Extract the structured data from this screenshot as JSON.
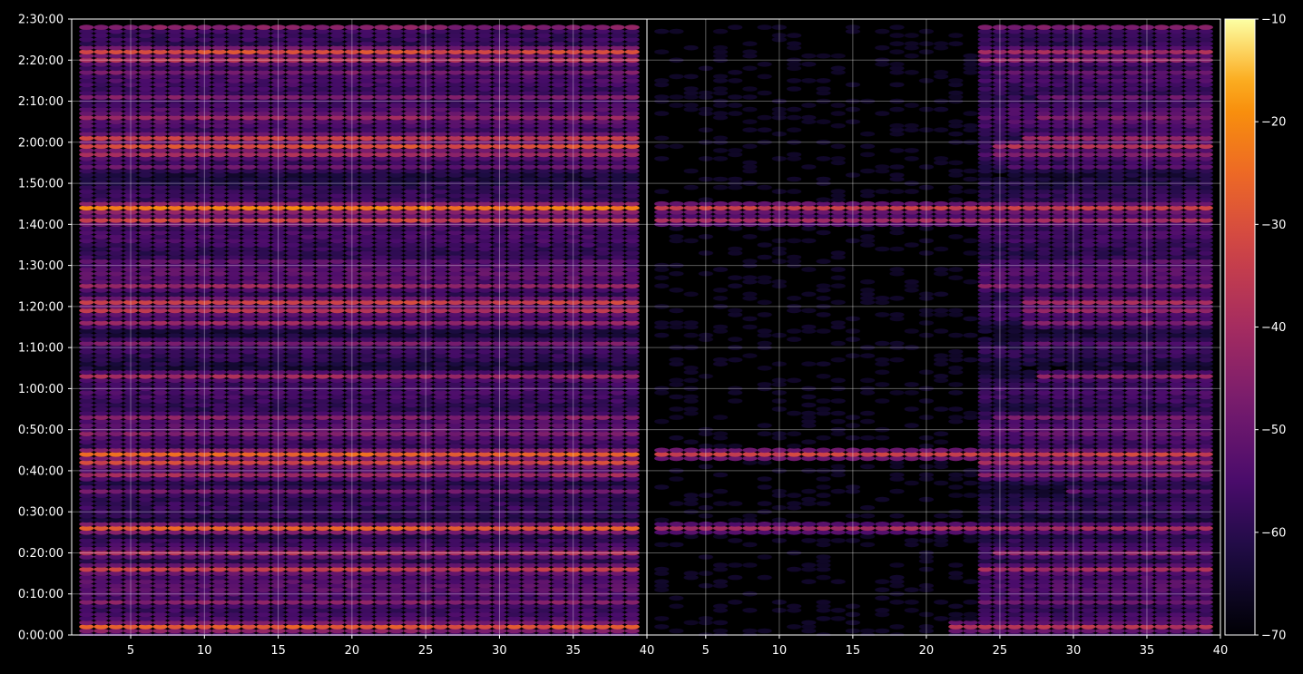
{
  "chart_data": {
    "type": "heatmap",
    "title": "",
    "xlabel": "",
    "ylabel": "",
    "background": "#000000",
    "colormap": "inferno",
    "colorbar": {
      "vmin": -70,
      "vmax": -10,
      "ticks": [
        -10,
        -20,
        -30,
        -40,
        -50,
        -60,
        -70
      ],
      "labels": [
        "−10",
        "−20",
        "−30",
        "−40",
        "−50",
        "−60",
        "−70"
      ]
    },
    "grid": true,
    "y_axis": {
      "unit": "time",
      "range_seconds": [
        0,
        9000
      ],
      "ticks": [
        0,
        600,
        1200,
        1800,
        2400,
        3000,
        3600,
        4200,
        4800,
        5400,
        6000,
        6600,
        7200,
        7800,
        8400,
        9000
      ],
      "tick_labels": [
        "0:00:00",
        "0:10:00",
        "0:20:00",
        "0:30:00",
        "0:40:00",
        "0:50:00",
        "1:00:00",
        "1:10:00",
        "1:20:00",
        "1:30:00",
        "1:40:00",
        "1:50:00",
        "2:00:00",
        "2:10:00",
        "2:20:00",
        "2:30:00"
      ]
    },
    "panels": [
      {
        "name": "left",
        "xlim": [
          1,
          40
        ],
        "xticks": [
          5,
          10,
          15,
          20,
          25,
          30,
          35,
          40
        ],
        "xtick_labels": [
          "5",
          "10",
          "15",
          "20",
          "25",
          "30",
          "35",
          "40"
        ]
      },
      {
        "name": "right",
        "xlim": [
          1,
          40
        ],
        "xticks": [
          5,
          10,
          15,
          20,
          25,
          30,
          35,
          40
        ],
        "xtick_labels": [
          "5",
          "10",
          "15",
          "20",
          "25",
          "30",
          "35",
          "40"
        ]
      }
    ],
    "channels_x": {
      "start": 2,
      "end": 39,
      "step": 1
    },
    "time_step_seconds": 60,
    "bands": [
      {
        "t": 8880,
        "left": -45,
        "right": -46,
        "right_from": 24
      },
      {
        "t": 8520,
        "left": -30,
        "right": -40,
        "right_from": 24
      },
      {
        "t": 8400,
        "left": -38,
        "right": -44,
        "right_from": 24
      },
      {
        "t": 8220,
        "left": -47,
        "right": -50,
        "right_from": 25
      },
      {
        "t": 7860,
        "left": -46,
        "right": -50,
        "right_from": 28
      },
      {
        "t": 7560,
        "left": -42,
        "right": -46,
        "right_from": 28
      },
      {
        "t": 7260,
        "left": -34,
        "right": -42,
        "right_from": 27
      },
      {
        "t": 7140,
        "left": -30,
        "right": -38,
        "right_from": 25
      },
      {
        "t": 7020,
        "left": -40,
        "right": -46,
        "right_from": 25
      },
      {
        "t": 6840,
        "left": -50,
        "right": -54,
        "right_from": 26
      },
      {
        "t": 6240,
        "left": -22,
        "right": -34,
        "right_from": 1,
        "right_fade": -55
      },
      {
        "t": 6060,
        "left": -33,
        "right": -40,
        "right_from": 1,
        "right_fade": -60
      },
      {
        "t": 5460,
        "left": -52,
        "right": -52,
        "right_from": 30
      },
      {
        "t": 5100,
        "left": -42,
        "right": -46,
        "right_from": 24
      },
      {
        "t": 4860,
        "left": -33,
        "right": -40,
        "right_from": 27
      },
      {
        "t": 4740,
        "left": -37,
        "right": -42,
        "right_from": 27
      },
      {
        "t": 4560,
        "left": -42,
        "right": -46,
        "right_from": 27
      },
      {
        "t": 4260,
        "left": -47,
        "right": -52,
        "right_from": 27
      },
      {
        "t": 3780,
        "left": -40,
        "right": -44,
        "right_from": 28
      },
      {
        "t": 3180,
        "left": -45,
        "right": -48,
        "right_from": 25
      },
      {
        "t": 2940,
        "left": -45,
        "right": -50,
        "right_from": 27
      },
      {
        "t": 2640,
        "left": -26,
        "right": -33,
        "right_from": 1,
        "right_fade": -50
      },
      {
        "t": 2520,
        "left": -32,
        "right": -40,
        "right_from": 24
      },
      {
        "t": 2340,
        "left": -40,
        "right": -44,
        "right_from": 24
      },
      {
        "t": 2100,
        "left": -48,
        "right": -52,
        "right_from": 30
      },
      {
        "t": 1560,
        "left": -27,
        "right": -40,
        "right_from": 1,
        "right_fade": -58
      },
      {
        "t": 1200,
        "left": -38,
        "right": -44,
        "right_from": 25
      },
      {
        "t": 960,
        "left": -34,
        "right": -40,
        "right_from": 24
      },
      {
        "t": 480,
        "left": -45,
        "right": -50,
        "right_from": 24
      },
      {
        "t": 120,
        "left": -28,
        "right": -37,
        "right_from": 22
      },
      {
        "t": 60,
        "left": -45,
        "right": -50,
        "right_from": 22
      }
    ]
  }
}
